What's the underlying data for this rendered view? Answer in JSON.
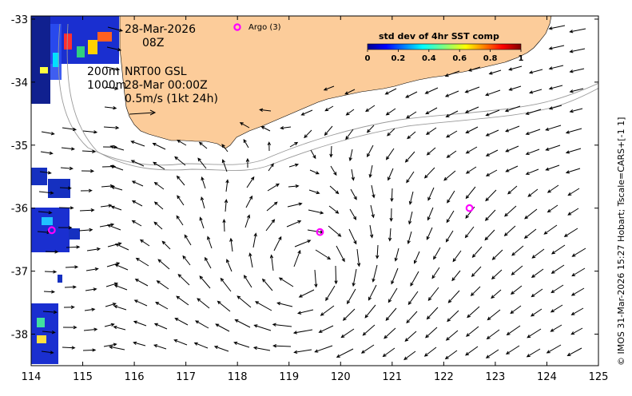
{
  "map": {
    "date": "28-Mar-2026",
    "time": "08Z",
    "depth_label_1": "200m",
    "depth_label_2": "1000m",
    "source": "NRT00 GSL",
    "source_time": "28-Mar 00:00Z",
    "scale_label": "0.5m/s (1kt 24h)",
    "argo_legend": "Argo (3)",
    "colorbar_title": "std dev of 4hr SST comp",
    "colorbar_ticks": [
      "0",
      "0.2",
      "0.4",
      "0.6",
      "0.8",
      "1"
    ],
    "credit": "© IMOS 31-Mar-2026 15:27 Hobart; Tscale=CARS+[-1 1]",
    "x_ticks": [
      "114",
      "115",
      "116",
      "117",
      "118",
      "119",
      "120",
      "121",
      "122",
      "123",
      "124",
      "125"
    ],
    "y_ticks": [
      "-33",
      "-34",
      "-35",
      "-36",
      "-37",
      "-38"
    ],
    "argo_floats": [
      {
        "lon": 114.4,
        "lat": -36.35
      },
      {
        "lon": 119.6,
        "lat": -36.38
      },
      {
        "lon": 122.5,
        "lat": -36.0
      }
    ],
    "colors": {
      "land": "#fccc9a",
      "argo": "#ff00ff",
      "arrow": "#000000",
      "isobath": "#9a9a9a"
    }
  }
}
